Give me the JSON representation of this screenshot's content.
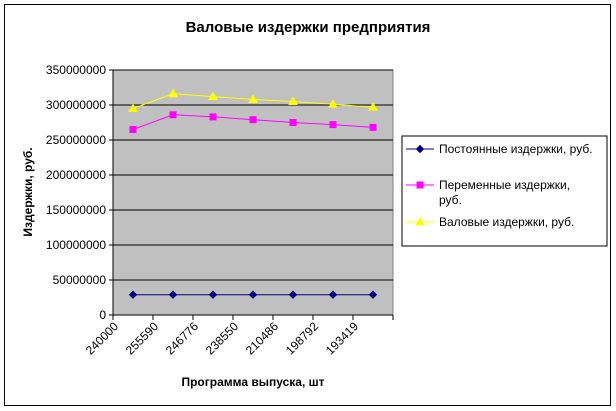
{
  "chart_data": {
    "type": "line",
    "title": "Валовые издержки предприятия",
    "xlabel": "Программа выпуска, шт",
    "ylabel": "Издержки, руб.",
    "categories": [
      "240000",
      "255590",
      "246776",
      "238550",
      "210486",
      "198792",
      "193419"
    ],
    "ylim": [
      0,
      350000000
    ],
    "yticks": [
      0,
      50000000,
      100000000,
      150000000,
      200000000,
      250000000,
      300000000,
      350000000
    ],
    "ytick_labels": [
      "0",
      "50000000",
      "100000000",
      "150000000",
      "200000000",
      "250000000",
      "300000000",
      "350000000"
    ],
    "grid": true,
    "legend_position": "right",
    "plot_background": "#c0c0c0",
    "series": [
      {
        "name": "Постоянные издержки, руб.",
        "legend_lines": [
          "Постоянные издержки, руб."
        ],
        "color": "#000080",
        "marker": "diamond",
        "values": [
          29000000,
          29000000,
          29000000,
          29000000,
          29000000,
          29000000,
          29000000
        ]
      },
      {
        "name": "Переменные издержки, руб.",
        "legend_lines": [
          "Переменные издержки,",
          "руб."
        ],
        "color": "#ff00ff",
        "marker": "square",
        "values": [
          265000000,
          286000000,
          283000000,
          279000000,
          275000000,
          272000000,
          268000000
        ]
      },
      {
        "name": "Валовые издержки, руб.",
        "legend_lines": [
          "Валовые издержки, руб."
        ],
        "color": "#ffff00",
        "marker": "triangle",
        "values": [
          295000000,
          316000000,
          312000000,
          308000000,
          305000000,
          301000000,
          297000000
        ]
      }
    ]
  }
}
